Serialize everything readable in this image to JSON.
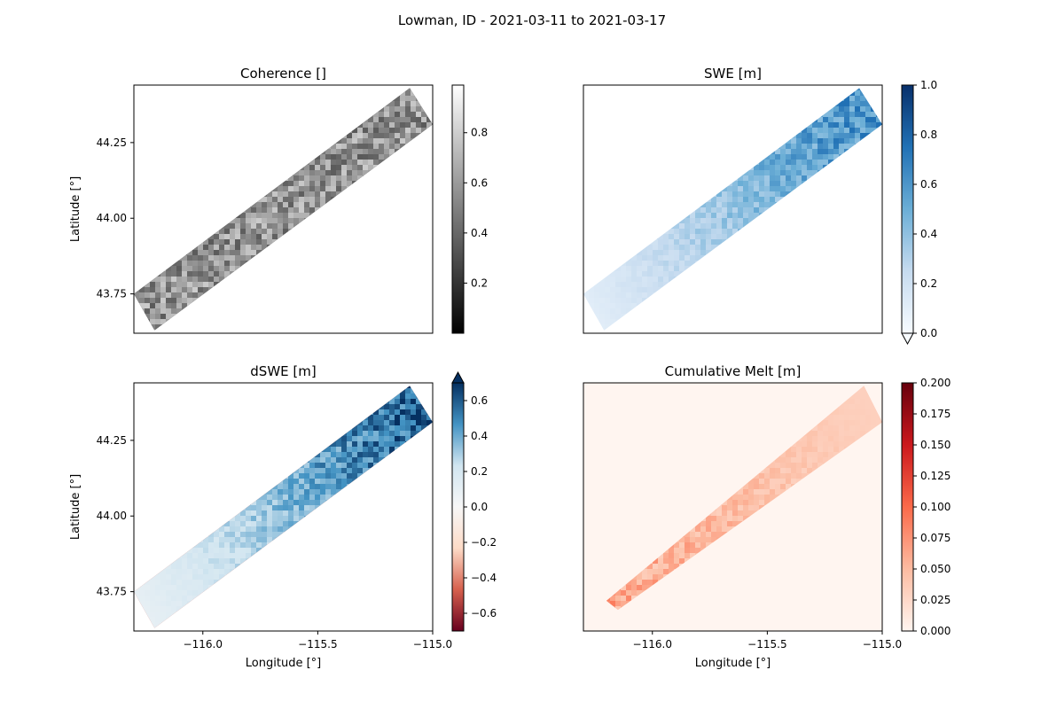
{
  "figure": {
    "suptitle": "Lowman, ID - 2021-03-11 to 2021-03-17"
  },
  "chart_data": [
    {
      "type": "heatmap",
      "title": "Coherence []",
      "xlabel": "",
      "ylabel": "Latitude [°]",
      "xlim": [
        -116.3,
        -115.0
      ],
      "ylim": [
        43.62,
        44.44
      ],
      "x_ticks": [],
      "y_ticks": [
        43.75,
        44.0,
        44.25
      ],
      "y_tick_labels": [
        "43.75",
        "44.00",
        "44.25"
      ],
      "colormap": "greys",
      "colorbar": {
        "range": [
          0.0,
          0.99
        ],
        "ticks": [
          0.2,
          0.4,
          0.6,
          0.8
        ],
        "tick_labels": [
          "0.2",
          "0.4",
          "0.6",
          "0.8"
        ],
        "extend": "none"
      },
      "colors": [
        "#000000",
        "#ffffff"
      ],
      "swath": [
        [
          -116.3,
          43.75
        ],
        [
          -116.21,
          43.63
        ],
        [
          -115.0,
          44.31
        ],
        [
          -115.1,
          44.43
        ]
      ],
      "value_range": [
        0.0,
        0.99
      ]
    },
    {
      "type": "heatmap",
      "title": "SWE [m]",
      "xlabel": "",
      "ylabel": "",
      "xlim": [
        -116.3,
        -115.0
      ],
      "ylim": [
        43.62,
        44.44
      ],
      "x_ticks": [],
      "y_ticks": [],
      "colormap": "blues",
      "colorbar": {
        "range": [
          0.0,
          1.0
        ],
        "ticks": [
          0.0,
          0.2,
          0.4,
          0.6,
          0.8,
          1.0
        ],
        "tick_labels": [
          "0.0",
          "0.2",
          "0.4",
          "0.6",
          "0.8",
          "1.0"
        ],
        "extend": "min"
      },
      "colors": [
        "#f7fbff",
        "#c6dbef",
        "#6baed6",
        "#2171b5",
        "#08306b"
      ],
      "swath": [
        [
          -116.3,
          43.75
        ],
        [
          -116.21,
          43.63
        ],
        [
          -115.0,
          44.31
        ],
        [
          -115.1,
          44.43
        ]
      ],
      "value_range": [
        0.0,
        0.75
      ]
    },
    {
      "type": "heatmap",
      "title": "dSWE [m]",
      "xlabel": "Longitude [°]",
      "ylabel": "Latitude [°]",
      "xlim": [
        -116.3,
        -115.0
      ],
      "ylim": [
        43.62,
        44.44
      ],
      "x_ticks": [
        -116.0,
        -115.5,
        -115.0
      ],
      "x_tick_labels": [
        "−116.0",
        "−115.5",
        "−115.0"
      ],
      "y_ticks": [
        43.75,
        44.0,
        44.25
      ],
      "y_tick_labels": [
        "43.75",
        "44.00",
        "44.25"
      ],
      "colormap": "rdbu",
      "colorbar": {
        "range": [
          -0.7,
          0.7
        ],
        "ticks": [
          -0.6,
          -0.4,
          -0.2,
          0.0,
          0.2,
          0.4,
          0.6
        ],
        "tick_labels": [
          "−0.6",
          "−0.4",
          "−0.2",
          "0.0",
          "0.2",
          "0.4",
          "0.6"
        ],
        "extend": "max"
      },
      "colors": [
        "#67001f",
        "#d6604d",
        "#fddbc7",
        "#f7f7f7",
        "#d1e5f0",
        "#4393c3",
        "#053061"
      ],
      "swath": [
        [
          -116.3,
          43.75
        ],
        [
          -116.21,
          43.63
        ],
        [
          -115.0,
          44.31
        ],
        [
          -115.1,
          44.43
        ]
      ],
      "value_range": [
        0.0,
        0.7
      ]
    },
    {
      "type": "heatmap",
      "title": "Cumulative Melt [m]",
      "xlabel": "Longitude [°]",
      "ylabel": "",
      "xlim": [
        -116.3,
        -115.0
      ],
      "ylim": [
        43.62,
        44.44
      ],
      "x_ticks": [
        -116.0,
        -115.5,
        -115.0
      ],
      "x_tick_labels": [
        "−116.0",
        "−115.5",
        "−115.0"
      ],
      "y_ticks": [],
      "colormap": "reds",
      "colorbar": {
        "range": [
          0.0,
          0.2
        ],
        "ticks": [
          0.0,
          0.025,
          0.05,
          0.075,
          0.1,
          0.125,
          0.15,
          0.175,
          0.2
        ],
        "tick_labels": [
          "0.000",
          "0.025",
          "0.050",
          "0.075",
          "0.100",
          "0.125",
          "0.150",
          "0.175",
          "0.200"
        ],
        "extend": "none"
      },
      "colors": [
        "#fff5f0",
        "#fcbba1",
        "#fb6a4a",
        "#cb181d",
        "#67000d"
      ],
      "background": "#fff5f0",
      "swath": [
        [
          -116.2,
          43.72
        ],
        [
          -116.15,
          43.69
        ],
        [
          -115.0,
          44.31
        ],
        [
          -115.08,
          44.43
        ]
      ],
      "value_range": [
        0.0,
        0.09
      ]
    }
  ]
}
